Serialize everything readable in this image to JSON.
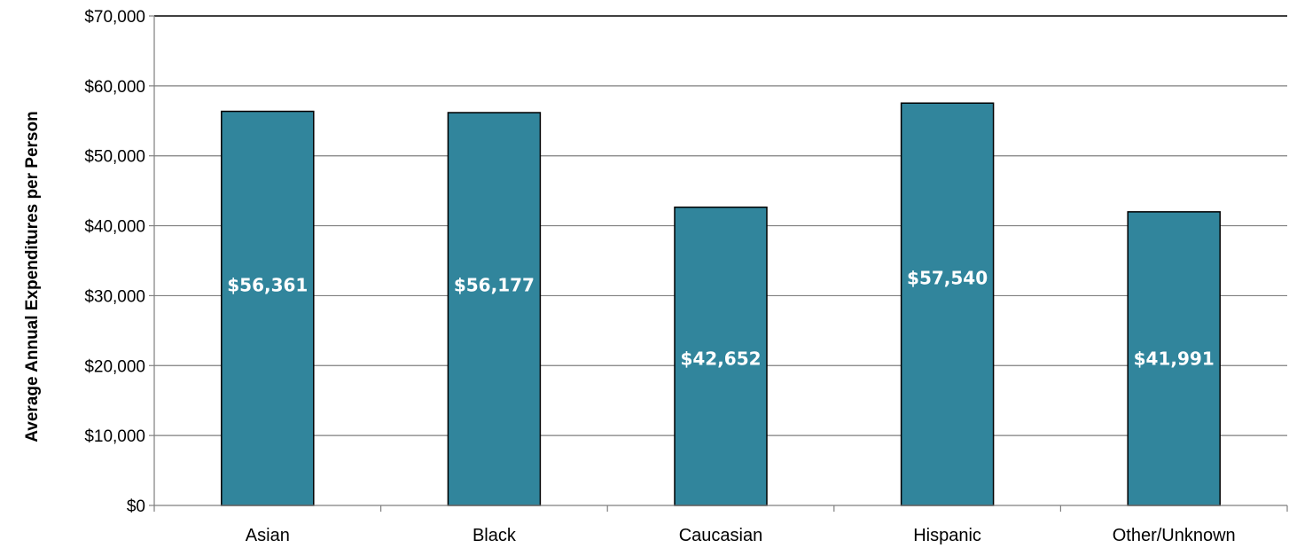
{
  "chart_data": {
    "type": "bar",
    "title": "",
    "xlabel": "",
    "ylabel": "Average Annual Expenditures per Person",
    "categories": [
      "Asian",
      "Black",
      "Caucasian",
      "Hispanic",
      "Other/Unknown"
    ],
    "values": [
      56361,
      56177,
      42652,
      57540,
      41991
    ],
    "data_labels": [
      "$56,361",
      "$56,177",
      "$42,652",
      "$57,540",
      "$41,991"
    ],
    "data_label_values": [
      31500,
      31500,
      21000,
      32500,
      21000
    ],
    "ylim": [
      0,
      70000
    ],
    "yticks": [
      0,
      10000,
      20000,
      30000,
      40000,
      50000,
      60000,
      70000
    ],
    "ytick_labels": [
      "$0",
      "$10,000",
      "$20,000",
      "$30,000",
      "$40,000",
      "$50,000",
      "$60,000",
      "$70,000"
    ],
    "grid": true,
    "legend": "none",
    "bar_color": "#31859c",
    "bar_edge_color": "#000000",
    "grid_color": "#7f7f7f"
  }
}
